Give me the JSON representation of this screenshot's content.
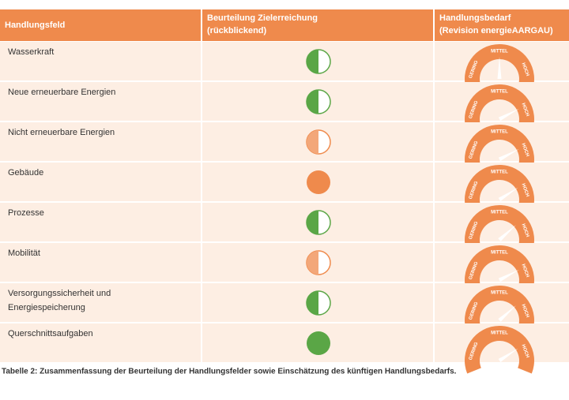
{
  "table": {
    "header": [
      [
        "Handlungsfeld"
      ],
      [
        "Beurteilung Zielerreichung",
        "(rückblickend)"
      ],
      [
        "Handlungsbedarf",
        "(Revision energieAARGAU)"
      ]
    ],
    "rows": [
      [
        "Wasserkraft"
      ],
      [
        "Neue erneuerbare Energien"
      ],
      [
        "Nicht erneuerbare Energien"
      ],
      [
        "Gebäude"
      ],
      [
        "Prozesse"
      ],
      [
        "Mobilität"
      ],
      [
        "Versorgungssicherheit und",
        "Energiespeicherung"
      ],
      [
        "Querschnittsaufgaben"
      ]
    ],
    "gauge_labels": [
      "GERING",
      "MITTEL",
      "HOCH"
    ]
  },
  "caption": "Tabelle 2: Zusammenfassung der Beurteilung der Handlungsfelder sowie Einschätzung des künftigen Handlungsbedarfs."
}
